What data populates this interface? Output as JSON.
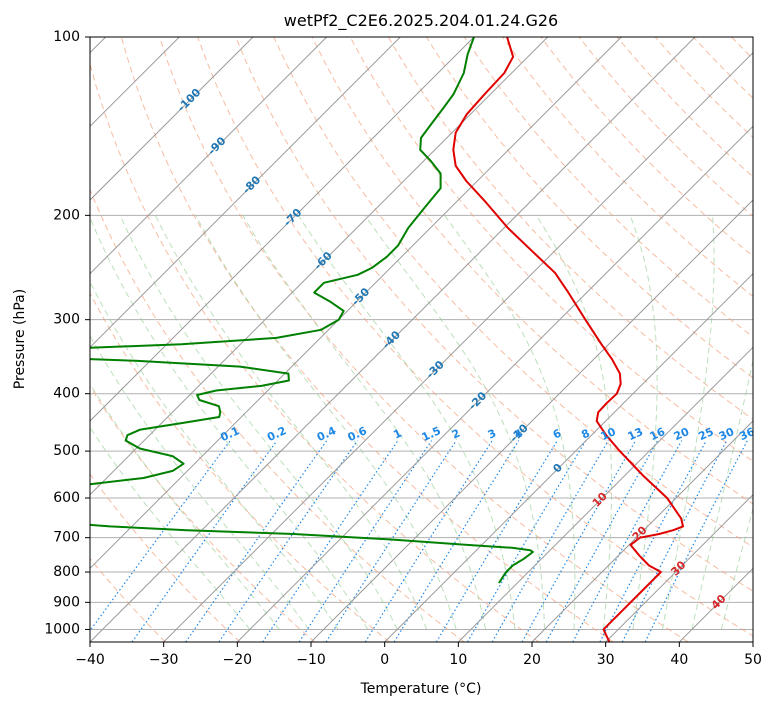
{
  "chart_data": {
    "type": "line",
    "title": "wetPf2_C2E6.2025.204.01.24.G26",
    "xlabel": "Temperature (°C)",
    "ylabel": "Pressure (hPa)",
    "xlim": [
      -40,
      50
    ],
    "ylim": [
      1050,
      100
    ],
    "yscale": "log",
    "grid": true,
    "x_ticks": [
      "−40",
      "−30",
      "−20",
      "−10",
      "0",
      "10",
      "20",
      "30",
      "40",
      "50"
    ],
    "y_ticks": [
      "100",
      "200",
      "300",
      "400",
      "500",
      "600",
      "700",
      "800",
      "900",
      "1000"
    ],
    "skew_isotherms": {
      "label_color": "#1f77b4",
      "values": [
        -100,
        -90,
        -80,
        -70,
        -60,
        -50,
        -40,
        -30,
        -20,
        -10,
        0
      ],
      "labels": [
        "-100",
        "-90",
        "-80",
        "-70",
        "-60",
        "-50",
        "-40",
        "-30",
        "-20",
        "-10",
        "0"
      ],
      "label_pressure": [
        128,
        153,
        178,
        202,
        239,
        275,
        325,
        365,
        412,
        467,
        535
      ]
    },
    "warm_isotherm_labels": {
      "color": "#d62728",
      "items": [
        {
          "text": "10",
          "temp": 10,
          "pressure": 605
        },
        {
          "text": "20",
          "temp": 20,
          "pressure": 690
        },
        {
          "text": "30",
          "temp": 30,
          "pressure": 790
        },
        {
          "text": "40",
          "temp": 40,
          "pressure": 900
        }
      ]
    },
    "mixing_ratio": {
      "color": "#1e88e5",
      "label_pressure": 480,
      "values": [
        0.1,
        0.2,
        0.4,
        0.6,
        1,
        1.5,
        2,
        3,
        4,
        6,
        8,
        10,
        13,
        16,
        20,
        25,
        30,
        36
      ],
      "labels": [
        "0.1",
        "0.2",
        "0.4",
        "0.6",
        "1",
        "1.5",
        "2",
        "3",
        "4",
        "6",
        "8",
        "10",
        "13",
        "16",
        "20",
        "25",
        "30",
        "36"
      ]
    },
    "series": [
      {
        "color": "#e00000",
        "points": [
          [
            1050,
            30.5
          ],
          [
            1000,
            28.0
          ],
          [
            800,
            28.0
          ],
          [
            780,
            25.5
          ],
          [
            750,
            22.8
          ],
          [
            720,
            20.2
          ],
          [
            700,
            20.5
          ],
          [
            690,
            22.6
          ],
          [
            680,
            24.0
          ],
          [
            670,
            24.8
          ],
          [
            650,
            23.5
          ],
          [
            600,
            18.8
          ],
          [
            550,
            12.5
          ],
          [
            500,
            6.0
          ],
          [
            470,
            2.0
          ],
          [
            445,
            -1.2
          ],
          [
            430,
            -2.2
          ],
          [
            415,
            -2.3
          ],
          [
            400,
            -2.2
          ],
          [
            385,
            -3.0
          ],
          [
            370,
            -4.5
          ],
          [
            350,
            -7.5
          ],
          [
            330,
            -11.0
          ],
          [
            300,
            -16.5
          ],
          [
            270,
            -22.5
          ],
          [
            250,
            -27.0
          ],
          [
            230,
            -33.0
          ],
          [
            210,
            -39.5
          ],
          [
            190,
            -46.0
          ],
          [
            175,
            -51.5
          ],
          [
            165,
            -55.0
          ],
          [
            155,
            -57.5
          ],
          [
            145,
            -59.5
          ],
          [
            135,
            -60.5
          ],
          [
            125,
            -60.8
          ],
          [
            115,
            -61.0
          ],
          [
            108,
            -62.0
          ],
          [
            100,
            -65.5
          ]
        ]
      },
      {
        "color": "#008000",
        "points": [
          [
            835,
            7.5
          ],
          [
            815,
            7.2
          ],
          [
            800,
            7.0
          ],
          [
            780,
            7.0
          ],
          [
            760,
            7.6
          ],
          [
            740,
            7.9
          ],
          [
            735,
            7.3
          ],
          [
            728,
            4.5
          ],
          [
            720,
            -2.0
          ],
          [
            705,
            -13.0
          ],
          [
            690,
            -27.0
          ],
          [
            680,
            -42.0
          ],
          [
            670,
            -53.0
          ],
          [
            665,
            -56.5
          ],
          [
            655,
            -57.0
          ],
          [
            650,
            -57.5
          ],
          [
            640,
            -72.0
          ],
          [
            630,
            -80.0
          ],
          [
            620,
            -78.0
          ],
          [
            610,
            -66.0
          ],
          [
            602,
            -61.0
          ],
          [
            596,
            -63.0
          ],
          [
            590,
            -75.0
          ],
          [
            582,
            -68.0
          ],
          [
            570,
            -62.0
          ],
          [
            555,
            -55.0
          ],
          [
            540,
            -52.0
          ],
          [
            525,
            -51.5
          ],
          [
            510,
            -54.0
          ],
          [
            495,
            -59.5
          ],
          [
            480,
            -62.5
          ],
          [
            470,
            -63.0
          ],
          [
            460,
            -62.0
          ],
          [
            448,
            -57.0
          ],
          [
            438,
            -53.0
          ],
          [
            430,
            -53.5
          ],
          [
            420,
            -54.5
          ],
          [
            410,
            -58.0
          ],
          [
            402,
            -59.0
          ],
          [
            395,
            -57.0
          ],
          [
            388,
            -51.5
          ],
          [
            380,
            -48.5
          ],
          [
            370,
            -49.5
          ],
          [
            360,
            -57.0
          ],
          [
            352,
            -72.0
          ],
          [
            348,
            -83.0
          ],
          [
            342,
            -84.0
          ],
          [
            335,
            -81.0
          ],
          [
            330,
            -68.0
          ],
          [
            322,
            -56.0
          ],
          [
            312,
            -51.0
          ],
          [
            300,
            -50.0
          ],
          [
            290,
            -50.5
          ],
          [
            280,
            -53.5
          ],
          [
            270,
            -57.0
          ],
          [
            260,
            -57.0
          ],
          [
            252,
            -53.5
          ],
          [
            245,
            -52.5
          ],
          [
            235,
            -52.0
          ],
          [
            225,
            -52.0
          ],
          [
            210,
            -53.0
          ],
          [
            195,
            -53.5
          ],
          [
            180,
            -54.0
          ],
          [
            170,
            -56.0
          ],
          [
            162,
            -59.0
          ],
          [
            155,
            -62.0
          ],
          [
            148,
            -63.5
          ],
          [
            140,
            -64.0
          ],
          [
            132,
            -64.5
          ],
          [
            125,
            -65.0
          ],
          [
            115,
            -66.5
          ],
          [
            107,
            -68.5
          ],
          [
            100,
            -70.0
          ]
        ]
      }
    ]
  }
}
